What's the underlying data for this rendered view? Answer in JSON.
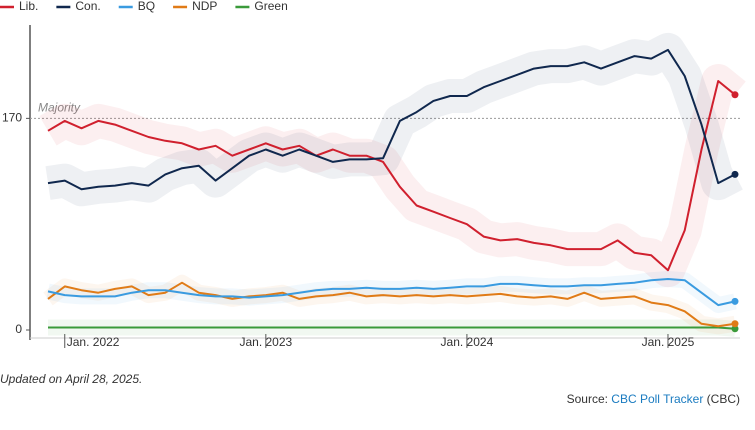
{
  "chart_data": {
    "type": "line",
    "categories": [
      null,
      "Jan. 2022",
      null,
      null,
      null,
      null,
      null,
      null,
      null,
      null,
      null,
      null,
      null,
      "Jan. 2023",
      null,
      null,
      null,
      null,
      null,
      null,
      null,
      null,
      null,
      null,
      null,
      "Jan. 2024",
      null,
      null,
      null,
      null,
      null,
      null,
      null,
      null,
      null,
      null,
      null,
      "Jan. 2025",
      null,
      null,
      null,
      null
    ],
    "series": [
      {
        "name": "Lib.",
        "color": "#d0202e",
        "values": [
          160,
          168,
          162,
          168,
          165,
          160,
          155,
          152,
          150,
          145,
          148,
          140,
          145,
          150,
          145,
          148,
          140,
          145,
          140,
          140,
          135,
          115,
          100,
          95,
          90,
          85,
          75,
          72,
          73,
          70,
          68,
          65,
          65,
          65,
          72,
          62,
          60,
          48,
          80,
          145,
          200,
          189
        ]
      },
      {
        "name": "Con.",
        "color": "#10284e",
        "values": [
          118,
          120,
          113,
          115,
          116,
          118,
          116,
          125,
          130,
          132,
          120,
          130,
          140,
          145,
          140,
          145,
          140,
          135,
          137,
          137,
          138,
          168,
          175,
          184,
          188,
          188,
          195,
          200,
          205,
          210,
          212,
          212,
          215,
          210,
          215,
          220,
          218,
          225,
          204,
          165,
          118,
          125
        ]
      },
      {
        "name": "BQ",
        "color": "#3a9be0",
        "values": [
          31,
          28,
          27,
          27,
          27,
          30,
          32,
          32,
          30,
          28,
          27,
          27,
          26,
          27,
          28,
          30,
          32,
          33,
          33,
          34,
          33,
          33,
          34,
          33,
          34,
          35,
          35,
          37,
          37,
          36,
          35,
          35,
          36,
          36,
          37,
          38,
          40,
          41,
          40,
          30,
          20,
          23
        ]
      },
      {
        "name": "NDP",
        "color": "#e07b17",
        "values": [
          25,
          35,
          32,
          30,
          33,
          35,
          28,
          30,
          38,
          30,
          28,
          25,
          27,
          28,
          30,
          25,
          27,
          28,
          30,
          27,
          28,
          27,
          28,
          27,
          28,
          27,
          28,
          29,
          27,
          26,
          27,
          25,
          30,
          25,
          26,
          27,
          22,
          20,
          15,
          5,
          3,
          5
        ]
      },
      {
        "name": "Green",
        "color": "#3a9a3a",
        "values": [
          2,
          2,
          2,
          2,
          2,
          2,
          2,
          2,
          2,
          2,
          2,
          2,
          2,
          2,
          2,
          2,
          2,
          2,
          2,
          2,
          2,
          2,
          2,
          2,
          2,
          2,
          2,
          2,
          2,
          2,
          2,
          2,
          2,
          2,
          2,
          2,
          2,
          2,
          2,
          2,
          2,
          1
        ]
      }
    ],
    "ylim": [
      0,
      245
    ],
    "yticks": [
      0,
      170
    ],
    "reference_line": {
      "value": 170,
      "label": "Majority"
    },
    "legend": "top-left",
    "footnote": "Updated on April 28, 2025.",
    "source": {
      "prefix": "Source:",
      "link": "CBC Poll Tracker",
      "suffix": "(CBC)"
    }
  }
}
